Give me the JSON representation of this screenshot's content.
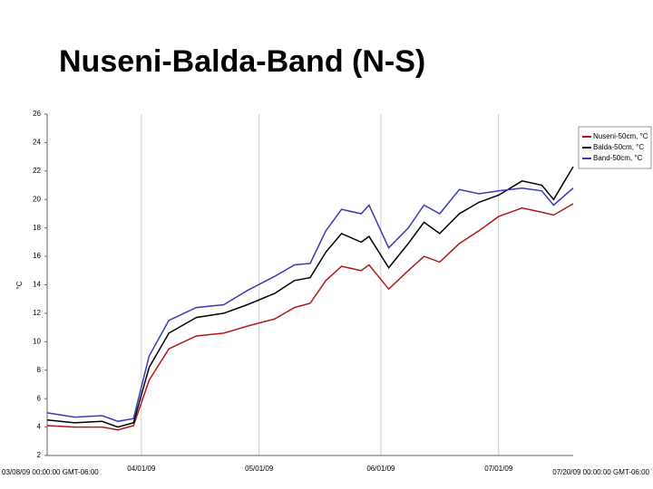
{
  "chart_data": {
    "type": "line",
    "title": "Nuseni-Balda-Band (N-S)",
    "y_label": "°C",
    "x": [
      "03/08/09",
      "03/15/09",
      "03/22/09",
      "03/26/09",
      "03/30/09",
      "04/03/09",
      "04/08/09",
      "04/15/09",
      "04/22/09",
      "04/28/09",
      "05/05/09",
      "05/10/09",
      "05/14/09",
      "05/18/09",
      "05/22/09",
      "05/27/09",
      "05/29/09",
      "06/03/09",
      "06/08/09",
      "06/12/09",
      "06/16/09",
      "06/21/09",
      "06/26/09",
      "07/01/09",
      "07/07/09",
      "07/12/09",
      "07/15/09",
      "07/20/09"
    ],
    "xlim": [
      "03/08/09 00:00:00 GMT-06:00",
      "07/20/09 00:00:00 GMT-06:00"
    ],
    "xticks": [
      "04/01/09",
      "05/01/09",
      "06/01/09",
      "07/01/09"
    ],
    "ylim": [
      2,
      26
    ],
    "yticks": [
      2,
      4,
      6,
      8,
      10,
      12,
      14,
      16,
      18,
      20,
      22,
      24,
      26
    ],
    "grid": true,
    "series": [
      {
        "name": "Nuseni-50cm, °C",
        "color": "#b01818",
        "values": [
          4.1,
          4.0,
          4.0,
          3.8,
          4.1,
          7.3,
          9.5,
          10.4,
          10.6,
          11.1,
          11.6,
          12.4,
          12.7,
          14.3,
          15.3,
          15.0,
          15.4,
          13.7,
          15.0,
          16.0,
          15.6,
          16.9,
          17.8,
          18.8,
          19.4,
          19.1,
          18.9,
          19.7
        ]
      },
      {
        "name": "Balda-50cm, °C",
        "color": "#000000",
        "values": [
          4.5,
          4.3,
          4.4,
          4.0,
          4.3,
          8.2,
          10.6,
          11.7,
          12.0,
          12.6,
          13.4,
          14.3,
          14.5,
          16.3,
          17.6,
          17.0,
          17.4,
          15.2,
          16.9,
          18.4,
          17.6,
          19.0,
          19.8,
          20.3,
          21.3,
          21.0,
          20.0,
          22.3
        ]
      },
      {
        "name": "Band-50cm, °C",
        "color": "#3a3ab8",
        "values": [
          5.0,
          4.7,
          4.8,
          4.4,
          4.6,
          9.0,
          11.5,
          12.4,
          12.6,
          13.6,
          14.6,
          15.4,
          15.5,
          17.8,
          19.3,
          19.0,
          19.6,
          16.6,
          18.0,
          19.6,
          19.0,
          20.7,
          20.4,
          20.6,
          20.8,
          20.6,
          19.6,
          20.8
        ]
      }
    ]
  }
}
